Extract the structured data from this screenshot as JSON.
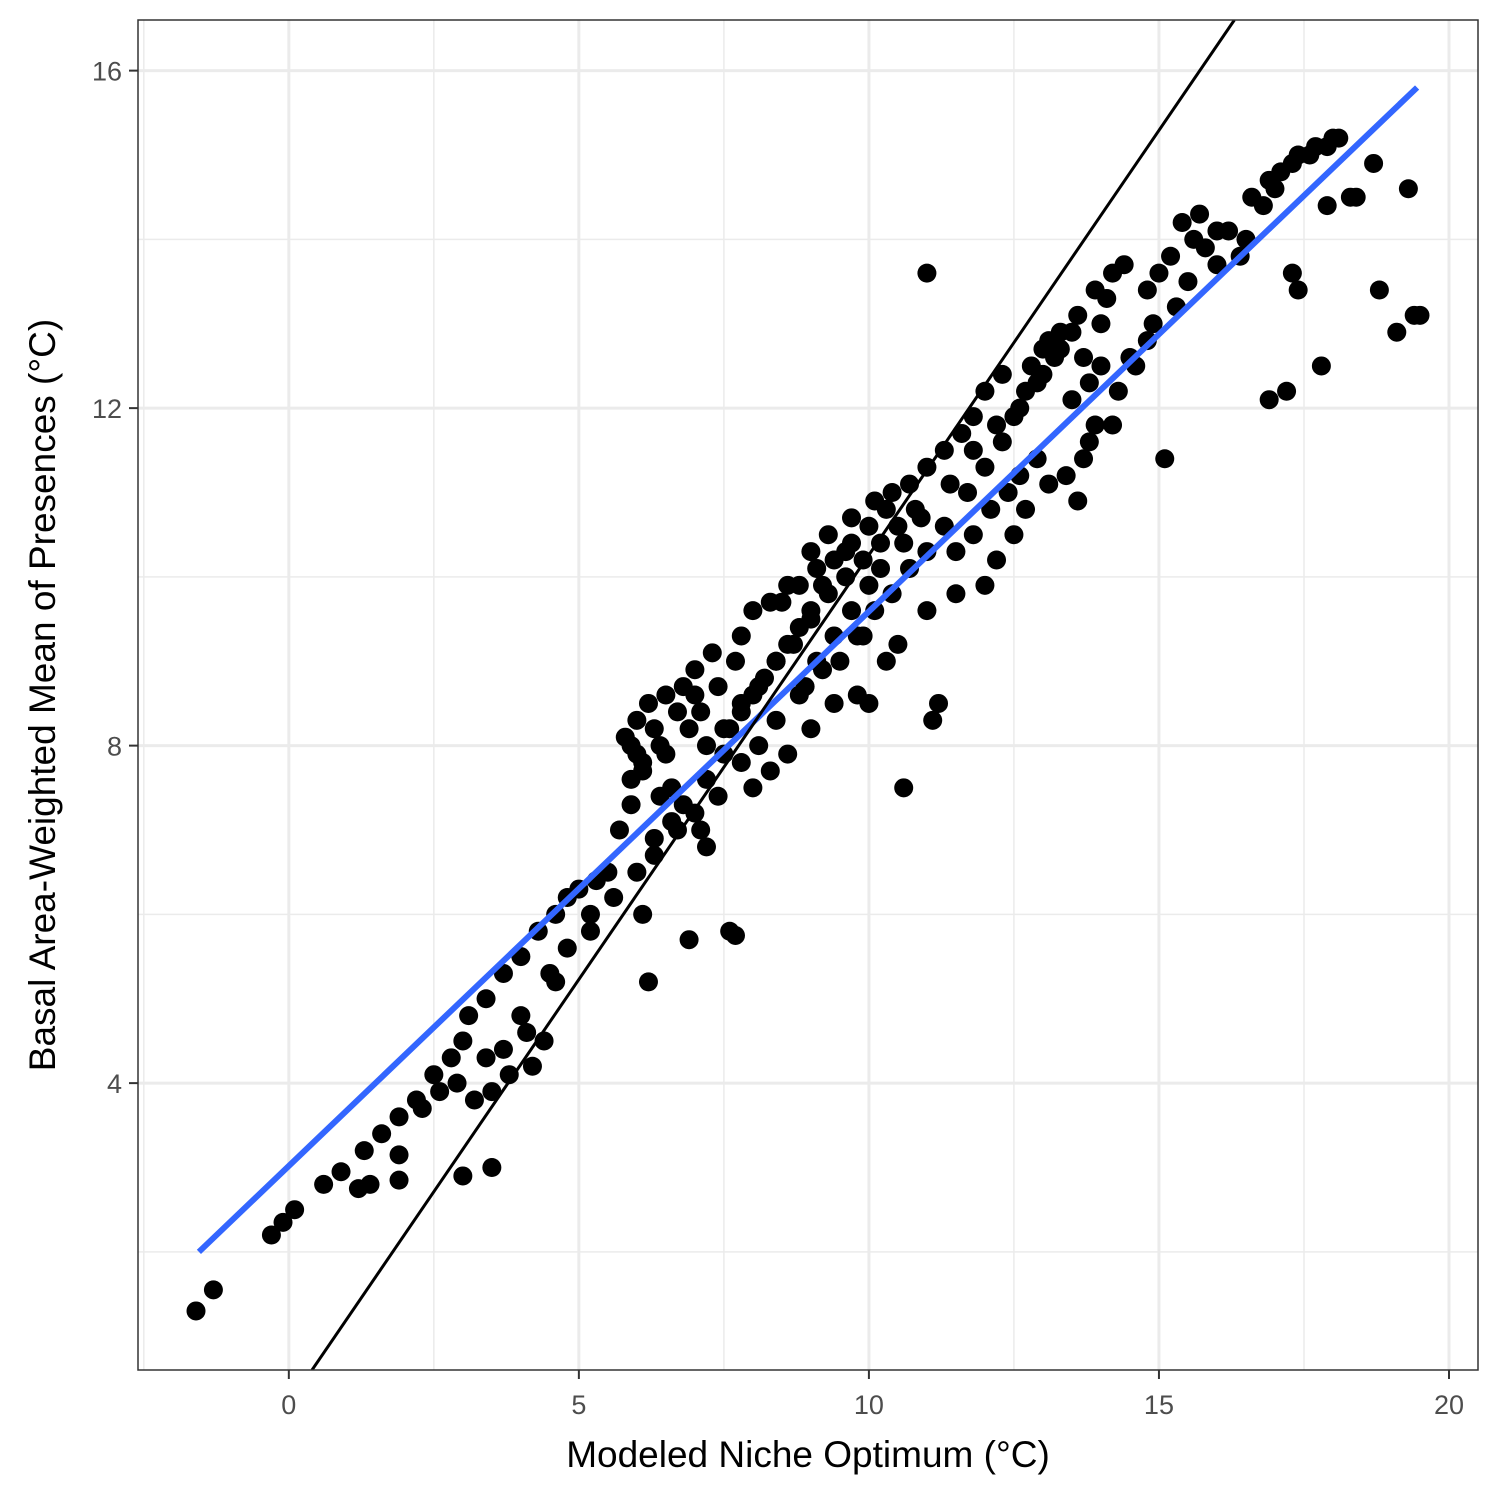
{
  "chart_data": {
    "type": "scatter",
    "title": "",
    "xlabel": "Modeled Niche Optimum (°C)",
    "ylabel": "Basal Area-Weighted Mean of Presences (°C)",
    "xlim": [
      -2.6,
      20.5
    ],
    "ylim": [
      0.6,
      16.6
    ],
    "x_ticks": [
      0,
      5,
      10,
      15,
      20
    ],
    "y_ticks": [
      4,
      8,
      12,
      16
    ],
    "grid": true,
    "legend": "none",
    "colors": {
      "points": "#000000",
      "fit_line": "#3366ff",
      "identity_line": "#000000",
      "grid": "#ebebeb",
      "panel_border": "#333333"
    },
    "series": [
      {
        "kind": "points",
        "note": "individual observations (sampled)",
        "points": [
          [
            -1.6,
            1.3
          ],
          [
            -1.3,
            1.55
          ],
          [
            -0.3,
            2.2
          ],
          [
            -0.1,
            2.35
          ],
          [
            0.1,
            2.5
          ],
          [
            0.6,
            2.8
          ],
          [
            0.9,
            2.95
          ],
          [
            1.2,
            2.75
          ],
          [
            1.4,
            2.8
          ],
          [
            1.9,
            2.85
          ],
          [
            1.9,
            3.15
          ],
          [
            1.3,
            3.2
          ],
          [
            1.6,
            3.4
          ],
          [
            1.9,
            3.6
          ],
          [
            2.2,
            3.8
          ],
          [
            2.5,
            4.1
          ],
          [
            2.8,
            4.3
          ],
          [
            3.0,
            4.5
          ],
          [
            3.2,
            3.8
          ],
          [
            3.5,
            3.9
          ],
          [
            3.8,
            4.1
          ],
          [
            3.1,
            4.8
          ],
          [
            3.4,
            5.0
          ],
          [
            3.7,
            5.3
          ],
          [
            4.0,
            5.5
          ],
          [
            4.2,
            4.2
          ],
          [
            4.1,
            4.6
          ],
          [
            4.3,
            5.8
          ],
          [
            4.6,
            6.0
          ],
          [
            4.8,
            6.2
          ],
          [
            5.0,
            6.3
          ],
          [
            5.3,
            6.4
          ],
          [
            3.0,
            2.9
          ],
          [
            3.5,
            3.0
          ],
          [
            4.6,
            5.2
          ],
          [
            5.2,
            5.8
          ],
          [
            5.5,
            6.5
          ],
          [
            5.7,
            7.0
          ],
          [
            5.9,
            7.3
          ],
          [
            5.8,
            8.1
          ],
          [
            6.0,
            8.3
          ],
          [
            6.2,
            8.5
          ],
          [
            6.5,
            8.6
          ],
          [
            6.8,
            8.7
          ],
          [
            7.0,
            8.9
          ],
          [
            7.3,
            9.1
          ],
          [
            5.9,
            7.6
          ],
          [
            6.1,
            7.8
          ],
          [
            6.4,
            8.0
          ],
          [
            6.6,
            7.5
          ],
          [
            6.8,
            7.3
          ],
          [
            7.2,
            7.6
          ],
          [
            7.5,
            7.9
          ],
          [
            6.1,
            6.0
          ],
          [
            6.2,
            5.2
          ],
          [
            6.9,
            5.7
          ],
          [
            7.6,
            5.8
          ],
          [
            7.7,
            5.75
          ],
          [
            7.2,
            6.8
          ],
          [
            7.1,
            7.0
          ],
          [
            7.6,
            8.2
          ],
          [
            7.8,
            8.4
          ],
          [
            8.0,
            8.6
          ],
          [
            8.2,
            8.8
          ],
          [
            8.4,
            9.0
          ],
          [
            8.6,
            9.2
          ],
          [
            8.8,
            9.4
          ],
          [
            7.8,
            9.3
          ],
          [
            8.0,
            9.6
          ],
          [
            8.3,
            9.7
          ],
          [
            8.6,
            9.9
          ],
          [
            9.0,
            10.3
          ],
          [
            9.3,
            10.5
          ],
          [
            9.7,
            10.7
          ],
          [
            8.0,
            7.5
          ],
          [
            8.3,
            7.7
          ],
          [
            8.6,
            7.9
          ],
          [
            9.0,
            8.2
          ],
          [
            9.4,
            8.5
          ],
          [
            9.8,
            8.6
          ],
          [
            10.0,
            8.5
          ],
          [
            9.0,
            9.6
          ],
          [
            9.3,
            9.8
          ],
          [
            9.6,
            10.0
          ],
          [
            9.9,
            10.2
          ],
          [
            10.2,
            10.4
          ],
          [
            10.5,
            10.6
          ],
          [
            10.8,
            10.8
          ],
          [
            10.1,
            10.9
          ],
          [
            10.4,
            11.0
          ],
          [
            10.7,
            11.1
          ],
          [
            11.0,
            11.3
          ],
          [
            11.3,
            11.5
          ],
          [
            11.6,
            11.7
          ],
          [
            11.8,
            11.9
          ],
          [
            10.6,
            7.5
          ],
          [
            11.1,
            8.3
          ],
          [
            11.2,
            8.5
          ],
          [
            11.0,
            13.6
          ],
          [
            12.0,
            12.2
          ],
          [
            12.3,
            12.4
          ],
          [
            11.5,
            10.3
          ],
          [
            11.8,
            10.5
          ],
          [
            12.1,
            10.8
          ],
          [
            12.4,
            11.0
          ],
          [
            12.6,
            11.2
          ],
          [
            12.9,
            11.4
          ],
          [
            12.5,
            10.5
          ],
          [
            12.7,
            10.8
          ],
          [
            13.1,
            11.1
          ],
          [
            13.4,
            11.2
          ],
          [
            13.7,
            11.4
          ],
          [
            13.9,
            11.8
          ],
          [
            12.8,
            12.5
          ],
          [
            13.0,
            12.7
          ],
          [
            13.3,
            12.9
          ],
          [
            13.6,
            13.1
          ],
          [
            13.9,
            13.4
          ],
          [
            14.2,
            13.6
          ],
          [
            14.4,
            13.7
          ],
          [
            13.5,
            12.1
          ],
          [
            13.8,
            12.3
          ],
          [
            14.0,
            12.5
          ],
          [
            14.3,
            12.2
          ],
          [
            14.6,
            12.5
          ],
          [
            14.8,
            12.8
          ],
          [
            14.8,
            13.4
          ],
          [
            15.0,
            13.6
          ],
          [
            15.2,
            13.8
          ],
          [
            15.5,
            13.5
          ],
          [
            15.8,
            13.9
          ],
          [
            16.0,
            13.7
          ],
          [
            15.1,
            11.4
          ],
          [
            15.3,
            13.2
          ],
          [
            15.6,
            14.0
          ],
          [
            15.4,
            14.2
          ],
          [
            15.7,
            14.3
          ],
          [
            16.0,
            14.1
          ],
          [
            16.2,
            14.1
          ],
          [
            16.5,
            14.0
          ],
          [
            16.6,
            14.5
          ],
          [
            16.9,
            14.7
          ],
          [
            17.1,
            14.8
          ],
          [
            17.4,
            15.0
          ],
          [
            17.7,
            15.1
          ],
          [
            18.0,
            15.2
          ],
          [
            16.8,
            14.4
          ],
          [
            17.0,
            14.6
          ],
          [
            17.3,
            14.9
          ],
          [
            17.6,
            15.0
          ],
          [
            17.9,
            15.1
          ],
          [
            18.1,
            15.2
          ],
          [
            17.3,
            13.6
          ],
          [
            17.4,
            13.4
          ],
          [
            17.9,
            14.4
          ],
          [
            18.3,
            14.5
          ],
          [
            18.4,
            14.5
          ],
          [
            18.7,
            14.9
          ],
          [
            19.3,
            14.6
          ],
          [
            16.9,
            12.1
          ],
          [
            17.2,
            12.2
          ],
          [
            17.8,
            12.5
          ],
          [
            18.8,
            13.4
          ],
          [
            19.1,
            12.9
          ],
          [
            19.4,
            13.1
          ],
          [
            19.5,
            13.1
          ],
          [
            16.4,
            13.8
          ],
          [
            14.9,
            13.0
          ],
          [
            14.5,
            12.6
          ],
          [
            14.2,
            11.8
          ],
          [
            13.8,
            11.6
          ],
          [
            13.6,
            10.9
          ],
          [
            12.0,
            9.9
          ],
          [
            12.2,
            10.2
          ],
          [
            11.5,
            9.8
          ],
          [
            11.0,
            9.6
          ],
          [
            10.5,
            9.2
          ],
          [
            10.3,
            9.0
          ],
          [
            9.9,
            9.3
          ],
          [
            9.2,
            8.9
          ],
          [
            8.8,
            8.6
          ],
          [
            8.4,
            8.3
          ],
          [
            8.1,
            8.0
          ],
          [
            7.8,
            7.8
          ],
          [
            7.4,
            7.4
          ],
          [
            7.0,
            7.2
          ],
          [
            6.6,
            7.1
          ],
          [
            6.3,
            6.7
          ],
          [
            6.0,
            6.5
          ],
          [
            5.6,
            6.2
          ],
          [
            5.2,
            6.0
          ],
          [
            4.8,
            5.6
          ],
          [
            4.5,
            5.3
          ],
          [
            4.4,
            4.5
          ],
          [
            4.0,
            4.8
          ],
          [
            3.7,
            4.4
          ],
          [
            3.4,
            4.3
          ],
          [
            2.9,
            4.0
          ],
          [
            2.6,
            3.9
          ],
          [
            2.3,
            3.7
          ],
          [
            6.3,
            6.9
          ],
          [
            6.7,
            7.0
          ],
          [
            6.4,
            7.4
          ],
          [
            6.9,
            8.2
          ],
          [
            7.1,
            8.4
          ],
          [
            7.4,
            8.7
          ],
          [
            7.7,
            9.0
          ],
          [
            8.5,
            9.7
          ],
          [
            8.8,
            9.9
          ],
          [
            9.1,
            10.1
          ],
          [
            9.4,
            10.2
          ],
          [
            9.7,
            10.4
          ],
          [
            10.0,
            10.6
          ],
          [
            10.3,
            10.8
          ],
          [
            9.5,
            9.0
          ],
          [
            9.8,
            9.3
          ],
          [
            10.1,
            9.6
          ],
          [
            10.4,
            9.8
          ],
          [
            10.7,
            10.1
          ],
          [
            11.0,
            10.3
          ],
          [
            11.3,
            10.6
          ],
          [
            11.7,
            11.0
          ],
          [
            12.0,
            11.3
          ],
          [
            12.3,
            11.6
          ],
          [
            12.5,
            11.9
          ],
          [
            12.7,
            12.2
          ],
          [
            13.0,
            12.4
          ],
          [
            13.2,
            12.6
          ],
          [
            8.9,
            8.7
          ],
          [
            9.1,
            9.0
          ],
          [
            9.4,
            9.3
          ],
          [
            9.7,
            9.6
          ],
          [
            10.0,
            9.9
          ],
          [
            10.2,
            10.1
          ],
          [
            10.6,
            10.4
          ],
          [
            7.2,
            8.0
          ],
          [
            7.5,
            8.2
          ],
          [
            7.8,
            8.5
          ],
          [
            8.1,
            8.7
          ],
          [
            8.4,
            9.0
          ],
          [
            8.7,
            9.2
          ],
          [
            9.0,
            9.5
          ],
          [
            6.0,
            7.9
          ],
          [
            6.3,
            8.2
          ],
          [
            6.7,
            8.4
          ],
          [
            7.0,
            8.6
          ],
          [
            5.9,
            8.0
          ],
          [
            6.1,
            7.7
          ],
          [
            6.5,
            7.9
          ],
          [
            9.6,
            10.3
          ],
          [
            9.2,
            9.9
          ],
          [
            10.9,
            10.7
          ],
          [
            11.4,
            11.1
          ],
          [
            11.8,
            11.5
          ],
          [
            12.2,
            11.8
          ],
          [
            12.6,
            12.0
          ],
          [
            13.3,
            12.7
          ],
          [
            13.5,
            12.9
          ],
          [
            13.7,
            12.6
          ],
          [
            14.0,
            13.0
          ],
          [
            14.1,
            13.3
          ],
          [
            13.1,
            12.8
          ],
          [
            12.9,
            12.3
          ]
        ]
      },
      {
        "kind": "line",
        "note": "fitted regression line",
        "x": [
          -1.55,
          19.45
        ],
        "y": [
          2.0,
          15.8
        ]
      },
      {
        "kind": "line",
        "note": "1:1 identity line",
        "x": [
          0.4,
          16.3
        ],
        "y": [
          0.6,
          16.6
        ]
      }
    ]
  }
}
